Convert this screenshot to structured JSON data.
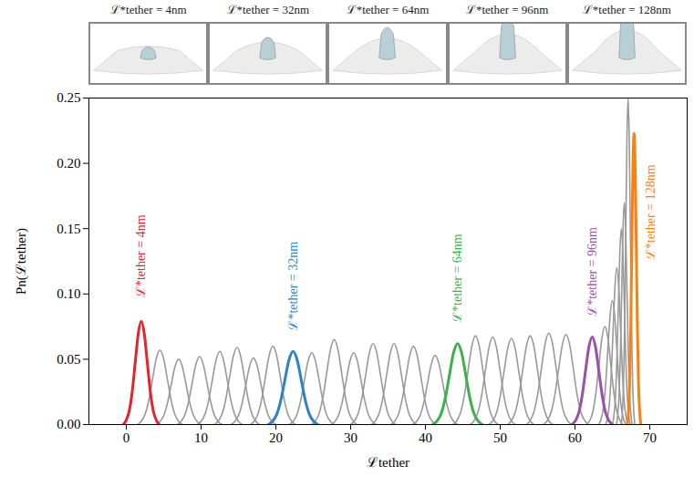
{
  "chart_data": {
    "type": "line",
    "panel_titles": [
      "ℒ*tether = 4nm",
      "ℒ*tether = 32nm",
      "ℒ*tether = 64nm",
      "ℒ*tether = 96nm",
      "ℒ*tether = 128nm"
    ],
    "xlabel": "ℒtether",
    "ylabel": "Pn(ℒtether)",
    "xlim": [
      -5,
      75
    ],
    "ylim": [
      0,
      0.25
    ],
    "xticks": [
      0,
      10,
      20,
      30,
      40,
      50,
      60,
      70
    ],
    "yticks": [
      {
        "value": 0,
        "label": "0.00"
      },
      {
        "value": 0.05,
        "label": "0.05"
      },
      {
        "value": 0.1,
        "label": "0.10"
      },
      {
        "value": 0.15,
        "label": "0.15"
      },
      {
        "value": 0.2,
        "label": "0.20"
      },
      {
        "value": 0.25,
        "label": "0.25"
      }
    ],
    "series": [
      {
        "color": "#999999",
        "x": [
          1.5,
          2,
          2.5,
          3,
          3.5,
          4,
          4.5,
          5,
          5.5,
          6,
          6.5,
          7,
          7.5
        ],
        "values": [
          0,
          0.0025,
          0.0077,
          0.0185,
          0.0346,
          0.0503,
          0.057,
          0.0503,
          0.0346,
          0.0185,
          0.0077,
          0.0025,
          0
        ]
      },
      {
        "color": "#999999",
        "x": [
          4,
          4.5,
          5,
          5.5,
          6,
          6.5,
          7,
          7.5,
          8,
          8.5,
          9,
          9.5,
          10
        ],
        "values": [
          0,
          0.0022,
          0.0068,
          0.0163,
          0.0304,
          0.0441,
          0.05,
          0.0441,
          0.0304,
          0.0163,
          0.0068,
          0.0022,
          0
        ]
      },
      {
        "color": "#999999",
        "x": [
          6.8,
          7.3,
          7.8,
          8.3,
          8.8,
          9.3,
          9.8,
          10.3,
          10.8,
          11.3,
          11.8,
          12.3,
          12.8
        ],
        "values": [
          0,
          0.0023,
          0.007,
          0.0169,
          0.0316,
          0.0459,
          0.052,
          0.0459,
          0.0316,
          0.0169,
          0.007,
          0.0023,
          0
        ]
      },
      {
        "color": "#999999",
        "x": [
          9.5,
          10,
          10.5,
          11,
          11.5,
          12,
          12.5,
          13,
          13.5,
          14,
          14.5,
          15,
          15.5
        ],
        "values": [
          0,
          0.0025,
          0.0076,
          0.0182,
          0.034,
          0.0494,
          0.056,
          0.0494,
          0.034,
          0.0182,
          0.0076,
          0.0025,
          0
        ]
      },
      {
        "color": "#999999",
        "x": [
          11.8,
          12.3,
          12.8,
          13.3,
          13.8,
          14.3,
          14.8,
          15.3,
          15.8,
          16.3,
          16.8,
          17.3,
          17.8
        ],
        "values": [
          0,
          0.0026,
          0.008,
          0.0192,
          0.0358,
          0.052,
          0.059,
          0.052,
          0.0358,
          0.0192,
          0.008,
          0.0026,
          0
        ]
      },
      {
        "color": "#999999",
        "x": [
          14,
          14.5,
          15,
          15.5,
          16,
          16.5,
          17,
          17.5,
          18,
          18.5,
          19,
          19.5,
          20
        ],
        "values": [
          0,
          0.0022,
          0.0069,
          0.0166,
          0.031,
          0.045,
          0.051,
          0.045,
          0.031,
          0.0166,
          0.0069,
          0.0022,
          0
        ]
      },
      {
        "color": "#999999",
        "x": [
          16.6,
          17.1,
          17.6,
          18.1,
          18.6,
          19.1,
          19.6,
          20.1,
          20.6,
          21.1,
          21.6,
          22.1,
          22.6
        ],
        "values": [
          0,
          0.0026,
          0.0081,
          0.0195,
          0.0364,
          0.0529,
          0.06,
          0.0529,
          0.0364,
          0.0195,
          0.0081,
          0.0026,
          0
        ]
      },
      {
        "color": "#999999",
        "x": [
          21.8,
          22.3,
          22.8,
          23.3,
          23.8,
          24.3,
          24.8,
          25.3,
          25.8,
          26.3,
          26.8,
          27.3,
          27.8
        ],
        "values": [
          0,
          0.0024,
          0.0074,
          0.0179,
          0.0334,
          0.0485,
          0.055,
          0.0485,
          0.0334,
          0.0179,
          0.0074,
          0.0024,
          0
        ]
      },
      {
        "color": "#999999",
        "x": [
          24.8,
          25.3,
          25.8,
          26.3,
          26.8,
          27.3,
          27.8,
          28.3,
          28.8,
          29.3,
          29.8,
          30.3,
          30.8
        ],
        "values": [
          0,
          0.0029,
          0.0088,
          0.0211,
          0.0395,
          0.0573,
          0.065,
          0.0573,
          0.0395,
          0.0211,
          0.0088,
          0.0029,
          0
        ]
      },
      {
        "color": "#999999",
        "x": [
          27.4,
          27.9,
          28.4,
          28.9,
          29.4,
          29.9,
          30.4,
          30.9,
          31.4,
          31.9,
          32.4,
          32.9,
          33.4
        ],
        "values": [
          0,
          0.0024,
          0.0074,
          0.0179,
          0.0334,
          0.0485,
          0.055,
          0.0485,
          0.0334,
          0.0179,
          0.0074,
          0.0024,
          0
        ]
      },
      {
        "color": "#999999",
        "x": [
          30,
          30.5,
          31,
          31.5,
          32,
          32.5,
          33,
          33.5,
          34,
          34.5,
          35,
          35.5,
          36
        ],
        "values": [
          0,
          0.0027,
          0.0084,
          0.0202,
          0.0376,
          0.0547,
          0.062,
          0.0547,
          0.0376,
          0.0202,
          0.0084,
          0.0027,
          0
        ]
      },
      {
        "color": "#999999",
        "x": [
          32.8,
          33.3,
          33.8,
          34.3,
          34.8,
          35.3,
          35.8,
          36.3,
          36.8,
          37.3,
          37.8,
          38.3,
          38.8
        ],
        "values": [
          0,
          0.0027,
          0.0084,
          0.0202,
          0.0376,
          0.0547,
          0.062,
          0.0547,
          0.0376,
          0.0202,
          0.0084,
          0.0027,
          0
        ]
      },
      {
        "color": "#999999",
        "x": [
          35.4,
          35.9,
          36.4,
          36.9,
          37.4,
          37.9,
          38.4,
          38.9,
          39.4,
          39.9,
          40.4,
          40.9,
          41.4
        ],
        "values": [
          0,
          0.0026,
          0.0081,
          0.0195,
          0.0364,
          0.0529,
          0.06,
          0.0529,
          0.0364,
          0.0195,
          0.0081,
          0.0026,
          0
        ]
      },
      {
        "color": "#999999",
        "x": [
          38.3,
          38.8,
          39.3,
          39.8,
          40.3,
          40.8,
          41.3,
          41.8,
          42.3,
          42.8,
          43.3,
          43.8,
          44.3
        ],
        "values": [
          0,
          0.0023,
          0.0072,
          0.0172,
          0.0322,
          0.0467,
          0.053,
          0.0467,
          0.0322,
          0.0172,
          0.0072,
          0.0023,
          0
        ]
      },
      {
        "color": "#999999",
        "x": [
          43.7,
          44.2,
          44.7,
          45.2,
          45.7,
          46.2,
          46.7,
          47.2,
          47.7,
          48.2,
          48.7,
          49.2,
          49.7
        ],
        "values": [
          0,
          0.003,
          0.0092,
          0.0221,
          0.0413,
          0.06,
          0.068,
          0.06,
          0.0413,
          0.0221,
          0.0092,
          0.003,
          0
        ]
      },
      {
        "color": "#999999",
        "x": [
          46,
          46.5,
          47,
          47.5,
          48,
          48.5,
          49,
          49.5,
          50,
          50.5,
          51,
          51.5,
          52
        ],
        "values": [
          0,
          0.0029,
          0.009,
          0.0218,
          0.0407,
          0.0591,
          0.067,
          0.0591,
          0.0407,
          0.0218,
          0.009,
          0.0029,
          0
        ]
      },
      {
        "color": "#999999",
        "x": [
          48.5,
          49,
          49.5,
          50,
          50.5,
          51,
          51.5,
          52,
          52.5,
          53,
          53.5,
          54,
          54.5
        ],
        "values": [
          0,
          0.0029,
          0.0089,
          0.0215,
          0.0401,
          0.0582,
          0.066,
          0.0582,
          0.0401,
          0.0215,
          0.0089,
          0.0029,
          0
        ]
      },
      {
        "color": "#999999",
        "x": [
          51,
          51.5,
          52,
          52.5,
          53,
          53.5,
          54,
          54.5,
          55,
          55.5,
          56,
          56.5,
          57
        ],
        "values": [
          0,
          0.003,
          0.0092,
          0.0221,
          0.0413,
          0.06,
          0.068,
          0.06,
          0.0413,
          0.0221,
          0.0092,
          0.003,
          0
        ]
      },
      {
        "color": "#999999",
        "x": [
          53.5,
          54,
          54.5,
          55,
          55.5,
          56,
          56.5,
          57,
          57.5,
          58,
          58.5,
          59,
          59.5
        ],
        "values": [
          0,
          0.0031,
          0.0095,
          0.0228,
          0.0425,
          0.0617,
          0.07,
          0.0617,
          0.0425,
          0.0228,
          0.0095,
          0.0031,
          0
        ]
      },
      {
        "color": "#999999",
        "x": [
          55.8,
          56.3,
          56.8,
          57.3,
          57.8,
          58.3,
          58.8,
          59.3,
          59.8,
          60.3,
          60.8,
          61.3,
          61.8
        ],
        "values": [
          0,
          0.003,
          0.0093,
          0.0224,
          0.0419,
          0.0609,
          0.069,
          0.0609,
          0.0419,
          0.0224,
          0.0093,
          0.003,
          0
        ]
      },
      {
        "color": "#999999",
        "x": [
          61.6,
          62,
          62.4,
          62.8,
          63.2,
          63.6,
          64,
          64.4,
          64.8,
          65.2,
          65.6,
          66,
          66.4
        ],
        "values": [
          0,
          0.0033,
          0.0101,
          0.0244,
          0.0455,
          0.0662,
          0.075,
          0.0662,
          0.0455,
          0.0244,
          0.0101,
          0.0033,
          0
        ]
      },
      {
        "color": "#999999",
        "x": [
          63.2,
          63.5,
          63.8,
          64.1,
          64.4,
          64.7,
          65,
          65.3,
          65.6,
          65.9,
          66.2,
          66.5,
          66.8
        ],
        "values": [
          0,
          0.0042,
          0.0128,
          0.0309,
          0.0577,
          0.0838,
          0.095,
          0.0838,
          0.0577,
          0.0309,
          0.0128,
          0.0042,
          0
        ]
      },
      {
        "color": "#999999",
        "x": [
          64.1,
          64.35,
          64.6,
          64.85,
          65.1,
          65.35,
          65.6,
          65.85,
          66.1,
          66.35,
          66.6,
          66.85,
          67.1
        ],
        "values": [
          0,
          0.0053,
          0.0162,
          0.039,
          0.0728,
          0.1058,
          0.12,
          0.1058,
          0.0728,
          0.039,
          0.0162,
          0.0053,
          0
        ]
      },
      {
        "color": "#999999",
        "x": [
          65,
          65.2,
          65.4,
          65.6,
          65.8,
          66,
          66.2,
          66.4,
          66.6,
          66.8,
          67,
          67.2,
          67.4
        ],
        "values": [
          0,
          0.0066,
          0.0203,
          0.0488,
          0.0911,
          0.1323,
          0.15,
          0.1323,
          0.0911,
          0.0488,
          0.0203,
          0.0066,
          0
        ]
      },
      {
        "color": "#999999",
        "x": [
          65.55,
          65.725,
          65.9,
          66.075,
          66.25,
          66.425,
          66.6,
          66.775,
          66.95,
          67.125,
          67.3,
          67.475,
          67.65
        ],
        "values": [
          0,
          0.0075,
          0.023,
          0.0553,
          0.1032,
          0.1499,
          0.17,
          0.1499,
          0.1032,
          0.0553,
          0.023,
          0.0075,
          0
        ]
      },
      {
        "color": "#999999",
        "x": [
          66.2,
          66.35,
          66.5,
          66.65,
          66.8,
          66.95,
          67.1,
          67.25,
          67.4,
          67.55,
          67.7,
          67.85,
          68
        ],
        "values": [
          0,
          0.011,
          0.0338,
          0.0813,
          0.1518,
          0.2205,
          0.25,
          0.2205,
          0.1518,
          0.0813,
          0.0338,
          0.011,
          0
        ]
      },
      {
        "name": "ℒ*tether = 4nm",
        "color": "#e3242b",
        "x": [
          -0.4,
          0,
          0.4,
          0.8,
          1.2,
          1.6,
          2,
          2.4,
          2.8,
          3.2,
          3.6,
          4,
          4.4
        ],
        "values": [
          0,
          0.0035,
          0.0107,
          0.0257,
          0.048,
          0.0697,
          0.079,
          0.0697,
          0.048,
          0.0257,
          0.0107,
          0.0035,
          0
        ]
      },
      {
        "name": "ℒ*tether = 32nm",
        "color": "#2b83c6",
        "x": [
          19,
          19.55,
          20.1,
          20.65,
          21.2,
          21.75,
          22.3,
          22.85,
          23.4,
          23.95,
          24.5,
          25.05,
          25.6
        ],
        "values": [
          0,
          0.0025,
          0.0076,
          0.0182,
          0.034,
          0.0494,
          0.056,
          0.0494,
          0.034,
          0.0182,
          0.0076,
          0.0025,
          0
        ]
      },
      {
        "name": "ℒ*tether = 64nm",
        "color": "#3cb04a",
        "x": [
          41,
          41.55,
          42.1,
          42.65,
          43.2,
          43.75,
          44.3,
          44.85,
          45.4,
          45.95,
          46.5,
          47.05,
          47.6
        ],
        "values": [
          0,
          0.0027,
          0.0084,
          0.0202,
          0.0376,
          0.0547,
          0.062,
          0.0547,
          0.0376,
          0.0202,
          0.0084,
          0.0027,
          0
        ]
      },
      {
        "name": "ℒ*tether = 96nm",
        "color": "#9b4fa8",
        "x": [
          59.6,
          60.05,
          60.5,
          60.95,
          61.4,
          61.85,
          62.3,
          62.75,
          63.2,
          63.65,
          64.1,
          64.55,
          65
        ],
        "values": [
          0,
          0.0029,
          0.009,
          0.0218,
          0.0407,
          0.0591,
          0.067,
          0.0591,
          0.0407,
          0.0218,
          0.009,
          0.0029,
          0
        ]
      },
      {
        "name": "ℒ*tether = 128nm",
        "color": "#ff7f0e",
        "x": [
          67,
          67.15,
          67.3,
          67.45,
          67.6,
          67.75,
          67.9,
          68.05,
          68.2,
          68.35,
          68.5,
          68.65,
          68.8
        ],
        "values": [
          0,
          0.0098,
          0.0301,
          0.0725,
          0.1354,
          0.1967,
          0.223,
          0.1967,
          0.1354,
          0.0725,
          0.0301,
          0.0098,
          0
        ]
      }
    ]
  }
}
